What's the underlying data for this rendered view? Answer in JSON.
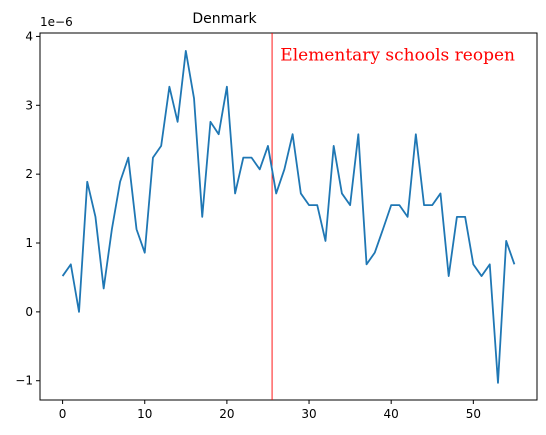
{
  "chart_data": {
    "type": "line",
    "title": "Denmark",
    "xlabel": "",
    "ylabel": "",
    "y_offset_label": "1e−6",
    "xlim": [
      -2.75,
      57.75
    ],
    "ylim": [
      -1.28,
      4.05
    ],
    "xticks": [
      0,
      10,
      20,
      30,
      40,
      50
    ],
    "xtick_labels": [
      "0",
      "10",
      "20",
      "30",
      "40",
      "50"
    ],
    "yticks": [
      -1,
      0,
      1,
      2,
      3,
      4
    ],
    "ytick_labels": [
      "−1",
      "0",
      "1",
      "2",
      "3",
      "4"
    ],
    "grid": false,
    "series": [
      {
        "color": "#1f77b4",
        "x": [
          0,
          1,
          2,
          3,
          4,
          5,
          6,
          7,
          8,
          9,
          10,
          11,
          12,
          13,
          14,
          15,
          16,
          17,
          18,
          19,
          20,
          21,
          22,
          23,
          24,
          25,
          26,
          27,
          28,
          29,
          30,
          31,
          32,
          33,
          34,
          35,
          36,
          37,
          38,
          39,
          40,
          41,
          42,
          43,
          44,
          45,
          46,
          47,
          48,
          49,
          50,
          51,
          52,
          53,
          54,
          55
        ],
        "values": [
          0.52,
          0.69,
          0.0,
          1.89,
          1.38,
          0.34,
          1.2,
          1.89,
          2.24,
          1.2,
          0.86,
          2.24,
          2.41,
          3.27,
          2.76,
          3.79,
          3.1,
          1.38,
          2.76,
          2.58,
          3.27,
          1.72,
          2.24,
          2.24,
          2.07,
          2.41,
          1.72,
          2.07,
          2.58,
          1.72,
          1.55,
          1.55,
          1.03,
          2.41,
          1.72,
          1.55,
          2.58,
          0.69,
          0.86,
          1.2,
          1.55,
          1.55,
          1.38,
          2.58,
          1.55,
          1.55,
          1.72,
          0.52,
          1.38,
          1.38,
          0.69,
          0.52,
          0.69,
          -1.03,
          1.03,
          0.69
        ]
      }
    ],
    "vline": {
      "x": 25.5,
      "color": "#ff0000"
    },
    "annotation": {
      "text": "Elementary  schools  reopen",
      "x": 26.5,
      "y": 3.65,
      "color": "#ff0000"
    }
  }
}
